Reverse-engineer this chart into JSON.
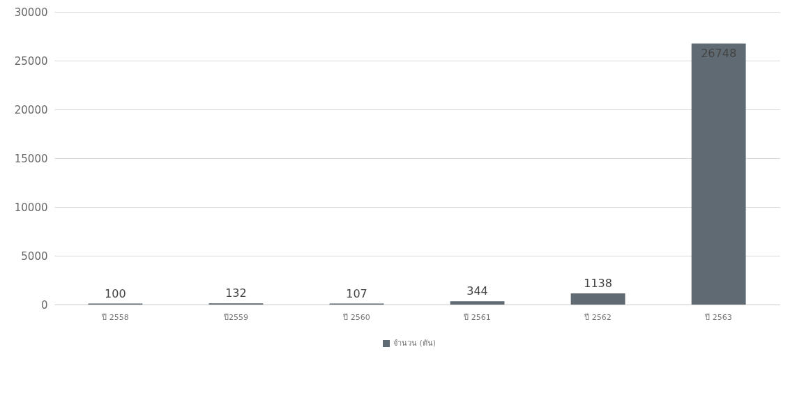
{
  "chart_data": {
    "type": "bar",
    "categories": [
      "ปี 2558",
      "ปี2559",
      "ปี 2560",
      "ปี 2561",
      "ปี 2562",
      "ปี 2563"
    ],
    "series": [
      {
        "name": "จำนวน (ตัน)",
        "color": "#5f6a72",
        "values": [
          100,
          132,
          107,
          344,
          1138,
          26748
        ]
      }
    ],
    "ylim": [
      0,
      30000
    ],
    "yticks": [
      0,
      5000,
      10000,
      15000,
      20000,
      25000,
      30000
    ],
    "grid": "y",
    "legend": "bottom",
    "data_labels": true
  }
}
